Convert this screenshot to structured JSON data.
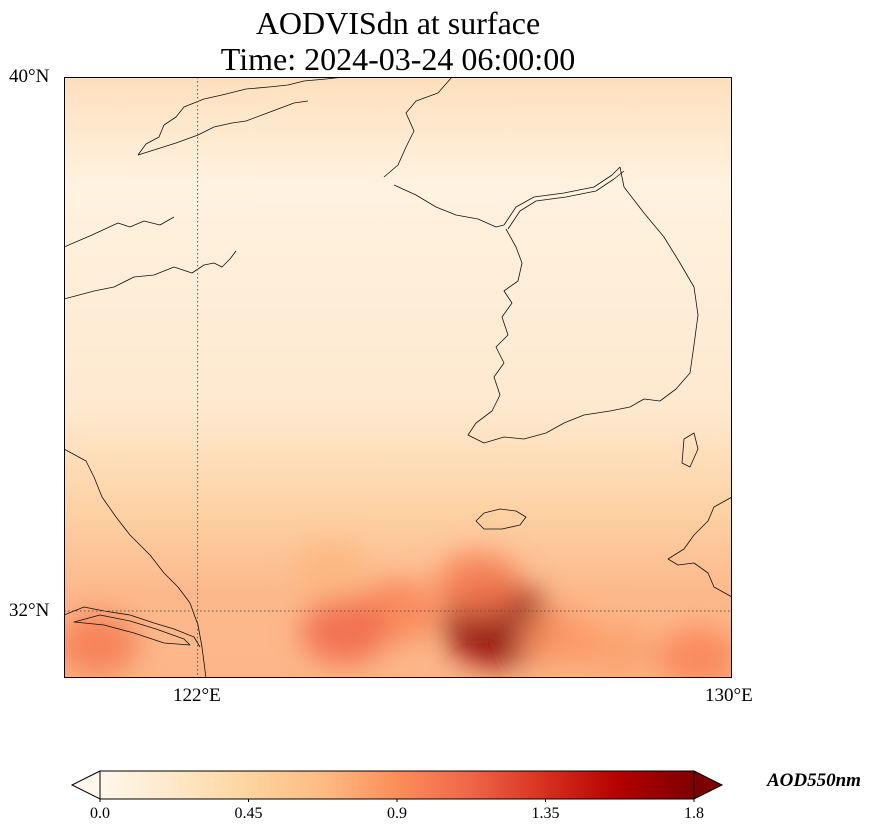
{
  "map": {
    "title_line1": "AODVISdn at surface",
    "title_line2": "Time: 2024-03-24 06:00:00",
    "lat_ticks": [
      {
        "value": 40,
        "label": "40°N"
      },
      {
        "value": 32,
        "label": "32°N"
      }
    ],
    "lon_ticks": [
      {
        "value": 122,
        "label": "122°E"
      },
      {
        "value": 130,
        "label": "130°E"
      }
    ],
    "extent": {
      "lon_min": 120,
      "lon_max": 130,
      "lat_min": 31,
      "lat_max": 40
    },
    "gridlines": {
      "style": "dotted",
      "color": "#555555"
    },
    "colorbar": {
      "label": "AOD550nm",
      "colormap": "OrRd",
      "extend": "both",
      "range": [
        0.0,
        1.8
      ],
      "ticks": [
        {
          "value": 0.0,
          "label": "0.0"
        },
        {
          "value": 0.45,
          "label": "0.45"
        },
        {
          "value": 0.9,
          "label": "0.9"
        },
        {
          "value": 1.35,
          "label": "1.35"
        },
        {
          "value": 1.8,
          "label": "1.8"
        }
      ],
      "stops": [
        "#fff7ec",
        "#fee8c8",
        "#fdd49e",
        "#fdbb84",
        "#fc8d59",
        "#ef6548",
        "#d7301f",
        "#b30000",
        "#7f0000"
      ]
    },
    "hotspots": [
      {
        "lon": 126.5,
        "lat": 31.8,
        "aod": 1.75
      },
      {
        "lon": 126.2,
        "lat": 32.4,
        "aod": 1.0
      },
      {
        "lon": 125.0,
        "lat": 32.0,
        "aod": 0.95
      },
      {
        "lon": 124.2,
        "lat": 31.7,
        "aod": 1.1
      },
      {
        "lon": 120.5,
        "lat": 31.5,
        "aod": 1.0
      },
      {
        "lon": 129.5,
        "lat": 31.3,
        "aod": 0.95
      },
      {
        "lon": 128.3,
        "lat": 31.4,
        "aod": 0.8
      },
      {
        "lon": 127.4,
        "lat": 31.6,
        "aod": 0.85
      },
      {
        "lon": 124.0,
        "lat": 32.6,
        "aod": 0.7
      }
    ]
  }
}
